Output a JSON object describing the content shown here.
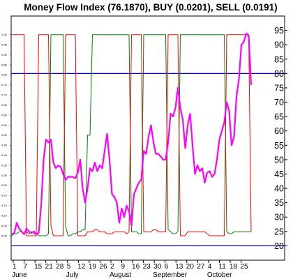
{
  "chart_data": {
    "type": "line",
    "title": "Money Flow Index (76.1870), BUY (0.0201), SELL (0.0191)",
    "grid": false,
    "legend": "none",
    "ylim": [
      15,
      100
    ],
    "y_ticks_right": [
      20,
      25,
      30,
      35,
      40,
      45,
      50,
      55,
      60,
      65,
      70,
      75,
      80,
      85,
      90,
      95
    ],
    "y_ticks_left": [
      "1.00",
      "0.95",
      "0.90",
      "0.85",
      "0.80",
      "0.75",
      "0.70",
      "0.65",
      "0.60",
      "0.55",
      "0.50",
      "0.45",
      "0.40",
      "0.35",
      "0.30",
      "0.25",
      "0.20",
      "0.15",
      "0.10",
      "0.05",
      "0.00"
    ],
    "x_ticks": [
      "1",
      "7",
      "15",
      "21",
      "28",
      "5",
      "12",
      "19",
      "26",
      "2",
      "9",
      "16",
      "23",
      "30",
      "6",
      "13",
      "20",
      "27",
      "4",
      "11",
      "18",
      "25"
    ],
    "months": [
      "June",
      "July",
      "August",
      "September",
      "October"
    ],
    "overbought": 80,
    "oversold": 20,
    "colors": {
      "mfi": "#ff00ff",
      "buy": "#ff0000",
      "sell": "#008000",
      "level": "#0000cc",
      "background": "#ffffff"
    },
    "series": [
      {
        "key": "mfi",
        "values": [
          24,
          24.5,
          28,
          26,
          25,
          24,
          26,
          25,
          24.5,
          25,
          24,
          24.5,
          34,
          50,
          57,
          56,
          57,
          49,
          47,
          48,
          47.5,
          45,
          43,
          44,
          44,
          44,
          43.5,
          45.5,
          50,
          40,
          35,
          40,
          47,
          46,
          49,
          46,
          48,
          47,
          53,
          59,
          50,
          38,
          37,
          35,
          28,
          33,
          30,
          34,
          32,
          27,
          38,
          40,
          42,
          43,
          53,
          52,
          58,
          62,
          56,
          52,
          52,
          51,
          50,
          50,
          56,
          66,
          65,
          68,
          75,
          68,
          64,
          54,
          62,
          66,
          55,
          45,
          48,
          46,
          47,
          42,
          45.5,
          46,
          44,
          45,
          50,
          57,
          60,
          63,
          70,
          67,
          55,
          58,
          72,
          78,
          90,
          91,
          94,
          93,
          76
        ]
      },
      {
        "key": "buy",
        "values": [
          1,
          1,
          1,
          1,
          1,
          1,
          0,
          0,
          0,
          0,
          0,
          1,
          1,
          1,
          1,
          1,
          0.05,
          0,
          0,
          0,
          0,
          0,
          1,
          1,
          1,
          1,
          1,
          0,
          0,
          0,
          0,
          0.02,
          0.02,
          0.02,
          0.03,
          0.03,
          0.02,
          0.02,
          0.02,
          0.01,
          0.01,
          0.01,
          0.02,
          0.02,
          0.02,
          0.02,
          0.02,
          0.01,
          0.02,
          1,
          1,
          1,
          1,
          1,
          0.02,
          0.02,
          0.02,
          0.02,
          0.03,
          0.03,
          0.02,
          0.02,
          0.02,
          0.02,
          1,
          1,
          1,
          1,
          1,
          0,
          0,
          0,
          0.02,
          0.02,
          0.02,
          0.02,
          0.02,
          0.02,
          0.02,
          0.02,
          0.01,
          0,
          0,
          0,
          0,
          0,
          0,
          0,
          1,
          1,
          1,
          1,
          1,
          1,
          1,
          1,
          1,
          1,
          0.02
        ]
      },
      {
        "key": "sell",
        "values": [
          0,
          0.01,
          0.01,
          0.02,
          0.02,
          0.01,
          0.02,
          0.01,
          0.02,
          0.01,
          0.01,
          0,
          0,
          0,
          0,
          0.01,
          1,
          1,
          1,
          1,
          1,
          1,
          0.05,
          0,
          0,
          0.01,
          0.01,
          0.02,
          0.02,
          0.03,
          0.03,
          0.5,
          0.5,
          1,
          1,
          1,
          1,
          1,
          1,
          1,
          1,
          1,
          1,
          1,
          1,
          1,
          1,
          1,
          1,
          0.02,
          0.02,
          0.02,
          0.01,
          0.01,
          1,
          1,
          1,
          1,
          1,
          1,
          1,
          1,
          1,
          1,
          0.03,
          0.02,
          0.01,
          0.01,
          0.02,
          1,
          1,
          1,
          1,
          1,
          1,
          1,
          1,
          1,
          1,
          1,
          1,
          1,
          1,
          1,
          1,
          1,
          1,
          1,
          0.02,
          0.01,
          0.01,
          0.02,
          0.02,
          0.02,
          0.02,
          0.02,
          0.02,
          0.02,
          0.02
        ]
      }
    ]
  }
}
